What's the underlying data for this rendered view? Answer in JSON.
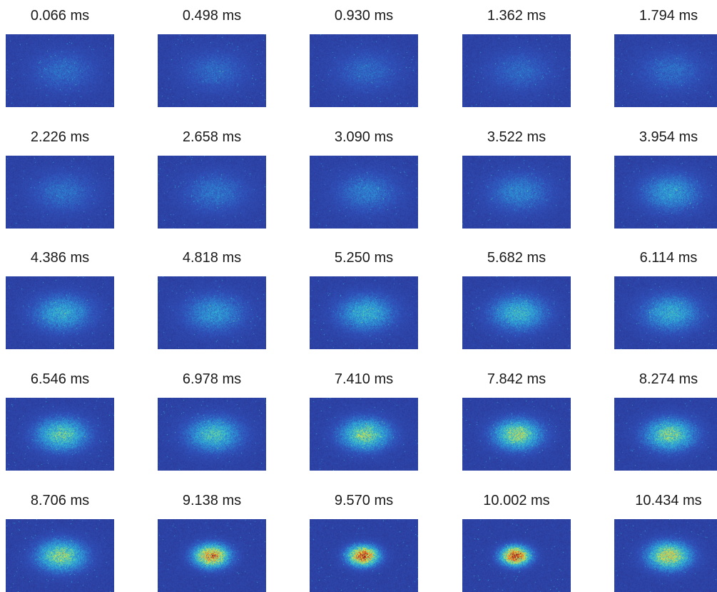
{
  "colors": {
    "background": "#2a3794",
    "colormap": [
      "#2a3794",
      "#2f4fb8",
      "#2d86d1",
      "#33b5d2",
      "#6ad39a",
      "#d9e24a",
      "#f3b134",
      "#e0472a",
      "#8f1d1d"
    ]
  },
  "frames": [
    {
      "label": "0.066 ms",
      "intensity": 0.05
    },
    {
      "label": "0.498 ms",
      "intensity": 0.04
    },
    {
      "label": "0.930 ms",
      "intensity": 0.04
    },
    {
      "label": "1.362 ms",
      "intensity": 0.04
    },
    {
      "label": "1.794 ms",
      "intensity": 0.05
    },
    {
      "label": "2.226 ms",
      "intensity": 0.06
    },
    {
      "label": "2.658 ms",
      "intensity": 0.07
    },
    {
      "label": "3.090 ms",
      "intensity": 0.09
    },
    {
      "label": "3.522 ms",
      "intensity": 0.11
    },
    {
      "label": "3.954 ms",
      "intensity": 0.18
    },
    {
      "label": "4.386 ms",
      "intensity": 0.22
    },
    {
      "label": "4.818 ms",
      "intensity": 0.16
    },
    {
      "label": "5.250 ms",
      "intensity": 0.24
    },
    {
      "label": "5.682 ms",
      "intensity": 0.26
    },
    {
      "label": "6.114 ms",
      "intensity": 0.23
    },
    {
      "label": "6.546 ms",
      "intensity": 0.36
    },
    {
      "label": "6.978 ms",
      "intensity": 0.3
    },
    {
      "label": "7.410 ms",
      "intensity": 0.42
    },
    {
      "label": "7.842 ms",
      "intensity": 0.46
    },
    {
      "label": "8.274 ms",
      "intensity": 0.4
    },
    {
      "label": "8.706 ms",
      "intensity": 0.44
    },
    {
      "label": "9.138 ms",
      "intensity": 0.72
    },
    {
      "label": "9.570 ms",
      "intensity": 0.82
    },
    {
      "label": "10.002 ms",
      "intensity": 0.86
    },
    {
      "label": "10.434 ms",
      "intensity": 0.56
    }
  ]
}
